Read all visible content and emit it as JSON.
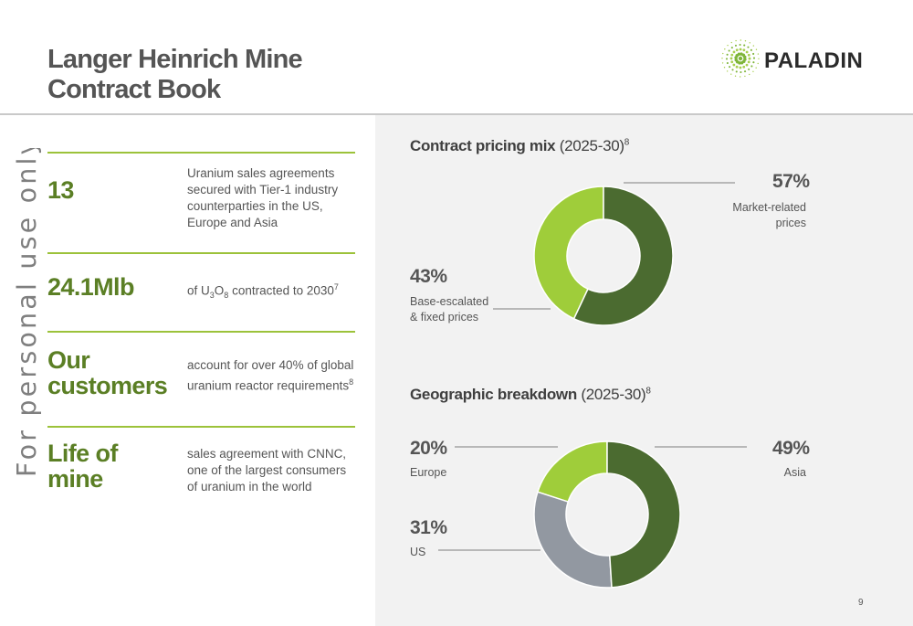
{
  "header": {
    "title_line1": "Langer Heinrich Mine",
    "title_line2": "Contract Book",
    "logo_text": "PALADIN"
  },
  "watermark": "For personal use only",
  "stats": [
    {
      "value": "13",
      "description": "Uranium sales agreements secured with Tier-1 industry counterparties in the US, Europe and Asia"
    },
    {
      "value": "24.1Mlb",
      "description_parts": [
        "of U",
        "3",
        "O",
        "8",
        " contracted to 2030",
        "7"
      ]
    },
    {
      "value_line1": "Our",
      "value_line2": "customers",
      "description": "account for over 40% of global uranium reactor requirements",
      "description_sup": "8"
    },
    {
      "value_line1": "Life of",
      "value_line2": "mine",
      "description": "sales agreement with CNNC, one of the largest consumers of uranium in the world"
    }
  ],
  "charts": [
    {
      "title_bold": "Contract pricing mix",
      "title_rest": " (2025-30)",
      "title_sup": "8"
    },
    {
      "title_bold": "Geographic breakdown",
      "title_rest": " (2025-30)",
      "title_sup": "8"
    }
  ],
  "chart_data": [
    {
      "type": "pie",
      "title": "Contract pricing mix (2025-30)",
      "categories": [
        "Market-related prices",
        "Base-escalated & fixed prices"
      ],
      "values": [
        57,
        43
      ],
      "labels": [
        "57%",
        "43%"
      ],
      "colors": [
        "#4b6b30",
        "#9fcd3a"
      ]
    },
    {
      "type": "pie",
      "title": "Geographic breakdown (2025-30)",
      "categories": [
        "Asia",
        "US",
        "Europe"
      ],
      "values": [
        49,
        31,
        20
      ],
      "labels": [
        "49%",
        "31%",
        "20%"
      ],
      "colors": [
        "#4b6b30",
        "#9298a1",
        "#9fcd3a"
      ]
    }
  ],
  "chart_labels": {
    "c1_pct_a": "57%",
    "c1_lbl_a1": "Market-related",
    "c1_lbl_a2": "prices",
    "c1_pct_b": "43%",
    "c1_lbl_b1": "Base-escalated",
    "c1_lbl_b2": "& fixed prices",
    "c2_pct_a": "49%",
    "c2_lbl_a": "Asia",
    "c2_pct_b": "31%",
    "c2_lbl_b": "US",
    "c2_pct_c": "20%",
    "c2_lbl_c": "Europe"
  },
  "colors": {
    "accent_green": "#9cc23a",
    "dark_green": "#4b6b30",
    "value_green": "#5b7f25",
    "grey": "#9298a1"
  },
  "page_number": "9"
}
